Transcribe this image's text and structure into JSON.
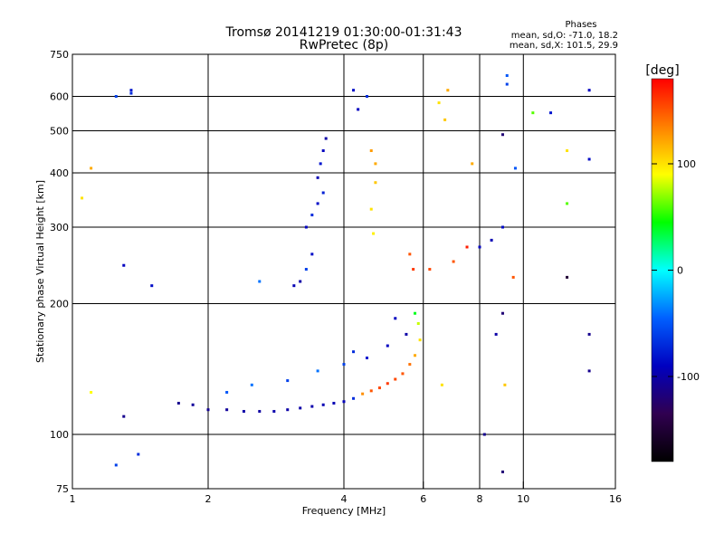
{
  "chart_data": {
    "type": "scatter",
    "title": "Tromsø 20141219 01:30:00-01:31:43",
    "subtitle": "RwPretec (8p)",
    "xlabel": "Frequency [MHz]",
    "ylabel": "Stationary phase Virtual Height [km]",
    "x_scale": "log",
    "y_scale": "log",
    "xlim": [
      1,
      16
    ],
    "ylim": [
      75,
      750
    ],
    "xticks": [
      1,
      2,
      4,
      6,
      8,
      10,
      16
    ],
    "yticks": [
      75,
      100,
      200,
      300,
      400,
      500,
      600,
      750
    ],
    "x_gridlines": [
      2,
      4,
      6,
      8,
      10
    ],
    "y_gridlines": [
      100,
      200,
      300,
      400,
      500,
      600
    ],
    "grid": true,
    "stats": {
      "title": "Phases",
      "line_o": "mean, sd,O: -71.0, 18.2",
      "line_x": "mean, sd,X: 101.5, 29.9"
    },
    "colorbar": {
      "label": "[deg]",
      "range": [
        -180,
        180
      ],
      "ticks": [
        100,
        0,
        -100
      ],
      "tick_labels": [
        "100",
        "0",
        "-100"
      ],
      "colors": [
        "#ff0000",
        "#ff8000",
        "#ffff00",
        "#00ff00",
        "#00ffff",
        "#0060ff",
        "#0000c0",
        "#300050",
        "#000000"
      ]
    },
    "series": [
      {
        "points": [
          [
            1.72,
            118,
            -110
          ],
          [
            1.85,
            117,
            -105
          ],
          [
            2.0,
            114,
            -108
          ],
          [
            2.2,
            114,
            -105
          ],
          [
            2.4,
            113,
            -100
          ],
          [
            2.6,
            113,
            -102
          ],
          [
            2.8,
            113,
            -98
          ],
          [
            3.0,
            114,
            -100
          ],
          [
            3.2,
            115,
            -100
          ],
          [
            3.4,
            116,
            -98
          ],
          [
            3.6,
            117,
            -95
          ],
          [
            3.8,
            118,
            -95
          ],
          [
            4.0,
            119,
            -92
          ],
          [
            4.2,
            121,
            -70
          ],
          [
            4.4,
            124,
            130
          ],
          [
            4.6,
            126,
            150
          ],
          [
            4.8,
            128,
            155
          ],
          [
            5.0,
            131,
            160
          ],
          [
            5.2,
            134,
            155
          ],
          [
            5.4,
            138,
            150
          ],
          [
            5.6,
            145,
            140
          ],
          [
            5.75,
            152,
            120
          ],
          [
            5.9,
            165,
            100
          ],
          [
            5.85,
            180,
            80
          ],
          [
            5.75,
            190,
            40
          ],
          [
            2.5,
            130,
            -40
          ],
          [
            3.0,
            133,
            -60
          ],
          [
            3.5,
            140,
            -40
          ],
          [
            4.0,
            145,
            -60
          ],
          [
            4.5,
            150,
            -80
          ],
          [
            5.0,
            160,
            -90
          ],
          [
            5.5,
            170,
            -100
          ],
          [
            2.2,
            125,
            -50
          ],
          [
            4.2,
            155,
            -70
          ],
          [
            5.2,
            185,
            -90
          ],
          [
            3.3,
            300,
            -90
          ],
          [
            3.4,
            320,
            -70
          ],
          [
            3.5,
            340,
            -85
          ],
          [
            3.6,
            360,
            -75
          ],
          [
            3.5,
            390,
            -95
          ],
          [
            3.55,
            420,
            -80
          ],
          [
            3.6,
            450,
            -90
          ],
          [
            3.65,
            480,
            -100
          ],
          [
            3.4,
            260,
            -85
          ],
          [
            3.3,
            240,
            -60
          ],
          [
            3.2,
            225,
            -100
          ],
          [
            3.1,
            220,
            -95
          ],
          [
            2.6,
            225,
            -40
          ],
          [
            4.6,
            330,
            100
          ],
          [
            4.7,
            380,
            110
          ],
          [
            4.7,
            420,
            120
          ],
          [
            4.6,
            450,
            125
          ],
          [
            4.65,
            290,
            95
          ],
          [
            4.3,
            560,
            -90
          ],
          [
            4.5,
            600,
            -70
          ],
          [
            4.2,
            620,
            -85
          ],
          [
            5.6,
            260,
            150
          ],
          [
            5.7,
            240,
            160
          ],
          [
            6.2,
            240,
            155
          ],
          [
            7.0,
            250,
            150
          ],
          [
            7.5,
            270,
            170
          ],
          [
            8.0,
            270,
            -90
          ],
          [
            8.5,
            280,
            -95
          ],
          [
            9.0,
            300,
            -85
          ],
          [
            9.5,
            230,
            150
          ],
          [
            1.05,
            350,
            100
          ],
          [
            1.1,
            410,
            120
          ],
          [
            1.25,
            600,
            -60
          ],
          [
            1.35,
            620,
            -80
          ],
          [
            1.35,
            610,
            -70
          ],
          [
            1.3,
            245,
            -90
          ],
          [
            1.5,
            220,
            -85
          ],
          [
            1.3,
            110,
            -110
          ],
          [
            1.1,
            125,
            90
          ],
          [
            1.4,
            90,
            -70
          ],
          [
            1.25,
            85,
            -60
          ],
          [
            8.2,
            100,
            -110
          ],
          [
            9.0,
            82,
            -120
          ],
          [
            9.2,
            670,
            -50
          ],
          [
            9.2,
            640,
            -60
          ],
          [
            10.5,
            550,
            60
          ],
          [
            11.5,
            550,
            -80
          ],
          [
            12.5,
            450,
            100
          ],
          [
            12.5,
            340,
            60
          ],
          [
            12.5,
            230,
            -150
          ],
          [
            14.0,
            620,
            -90
          ],
          [
            14.0,
            430,
            -85
          ],
          [
            14.0,
            170,
            -110
          ],
          [
            14.0,
            140,
            -110
          ],
          [
            6.8,
            620,
            120
          ],
          [
            6.5,
            580,
            100
          ],
          [
            6.7,
            530,
            110
          ],
          [
            7.7,
            420,
            120
          ],
          [
            9.0,
            490,
            -120
          ],
          [
            9.6,
            410,
            -50
          ],
          [
            9.1,
            130,
            110
          ],
          [
            6.6,
            130,
            100
          ],
          [
            8.7,
            170,
            -100
          ],
          [
            9.0,
            190,
            -120
          ]
        ]
      }
    ]
  }
}
